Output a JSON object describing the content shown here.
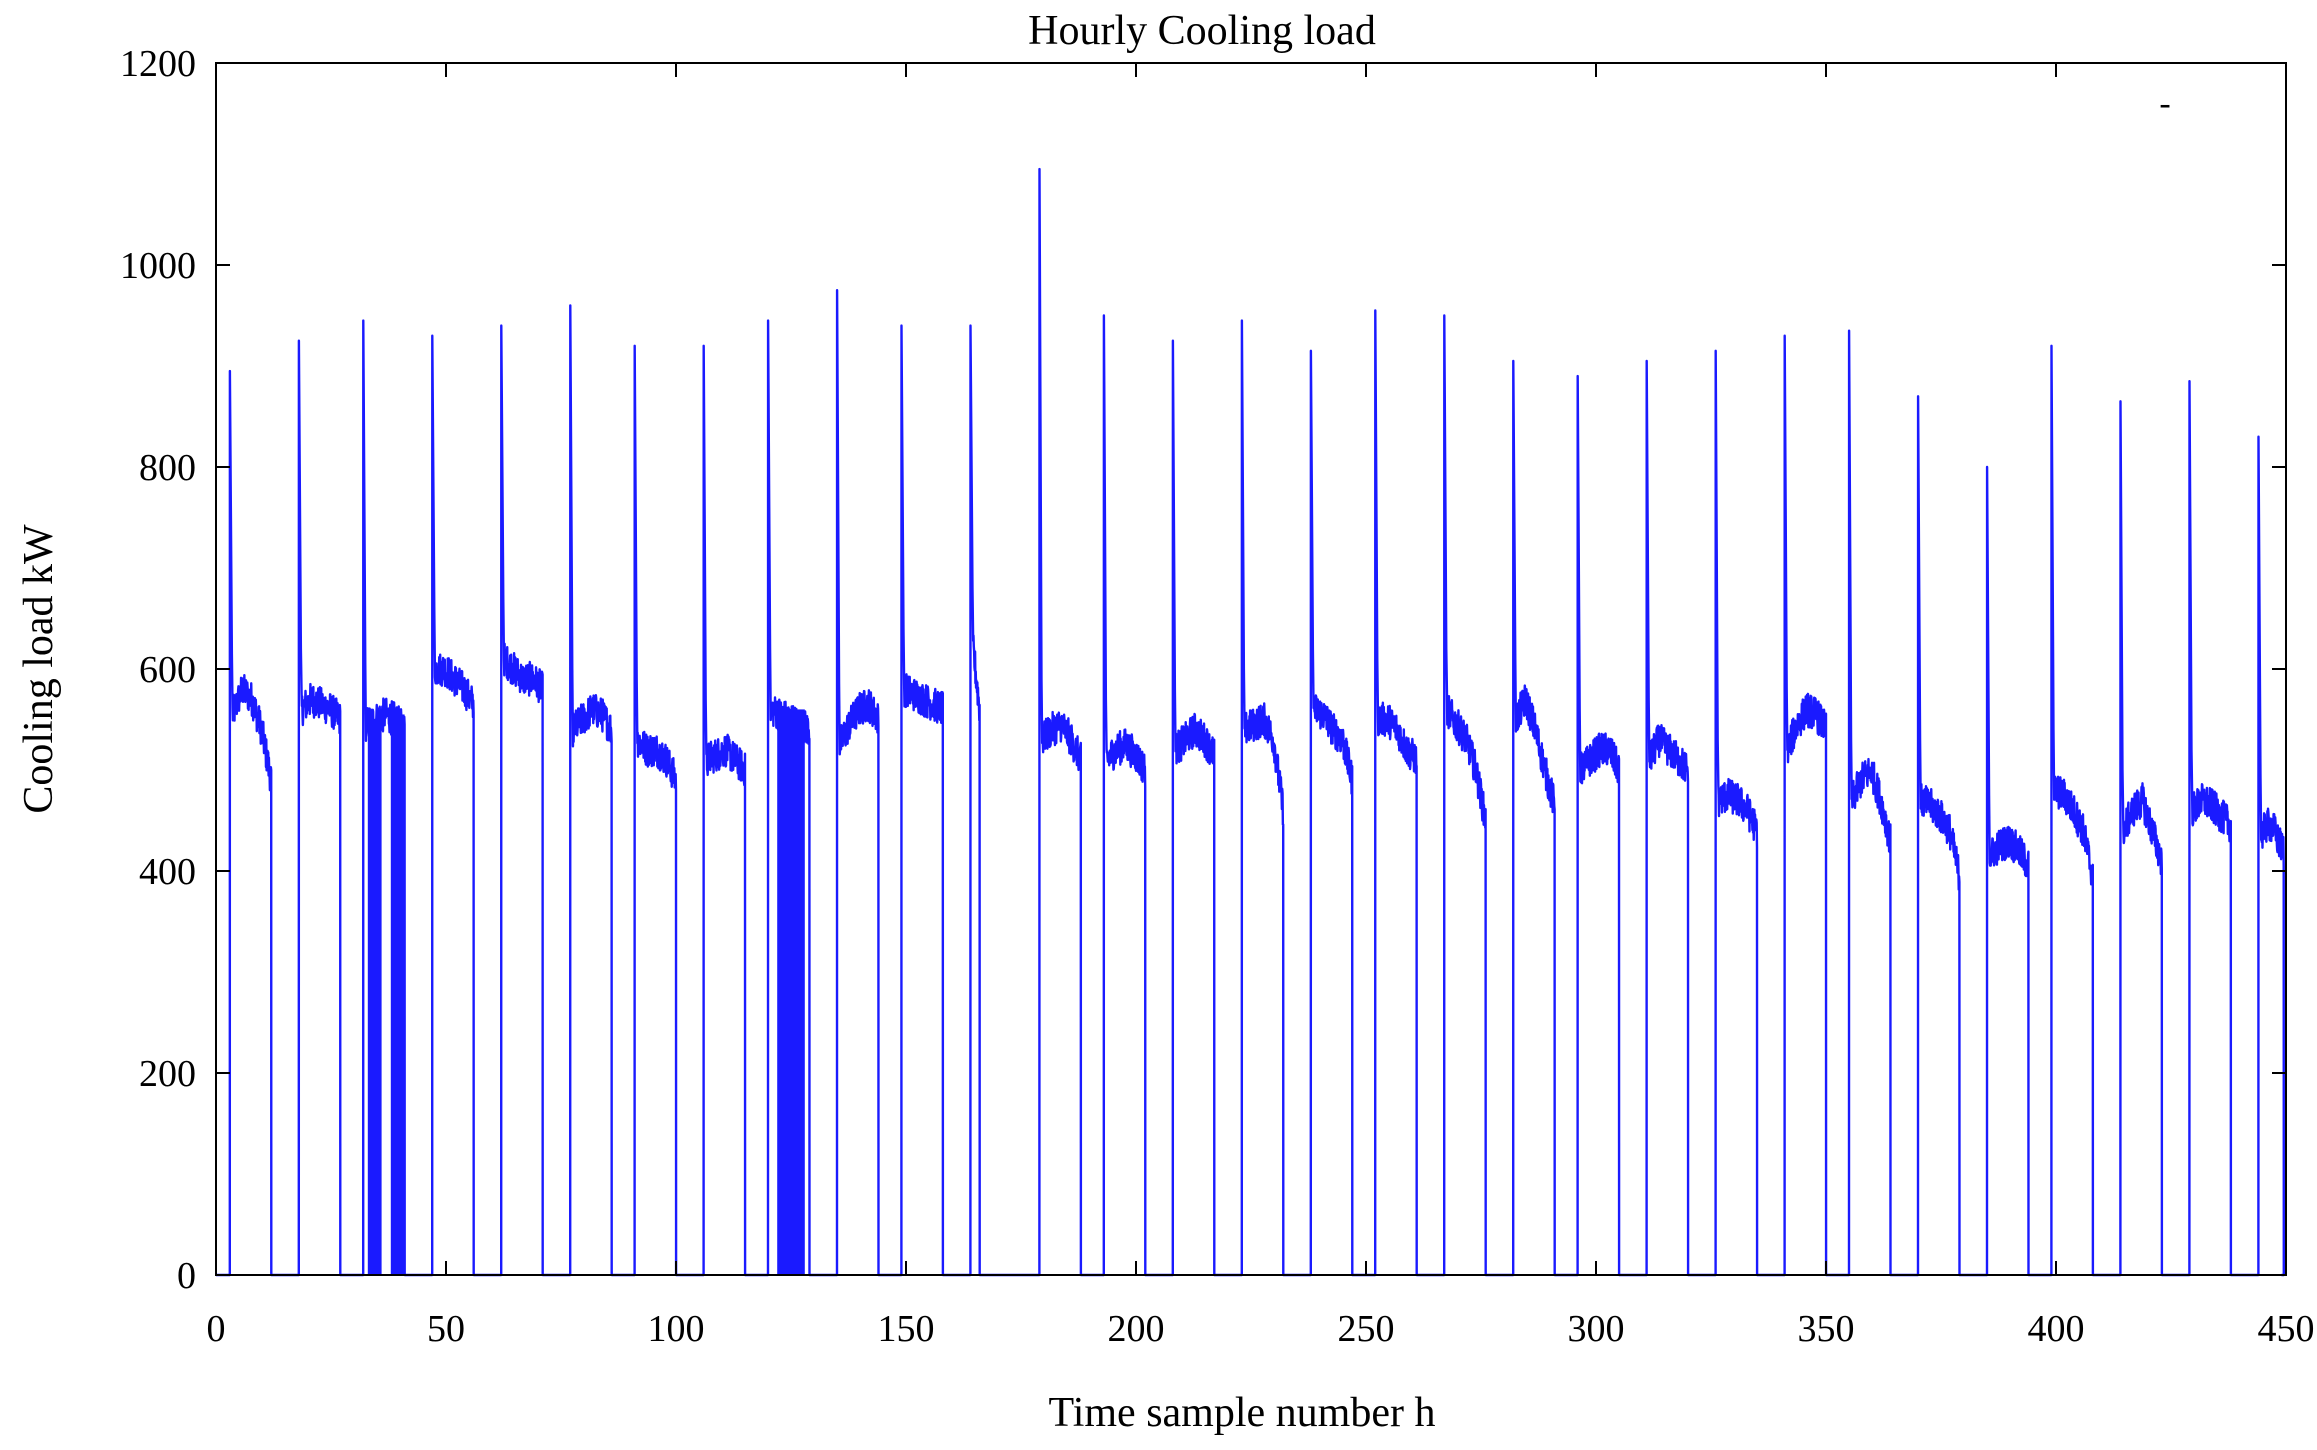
{
  "chart_data": {
    "type": "line",
    "title": "Hourly Cooling load",
    "xlabel": "Time sample number  h",
    "ylabel": "Cooling load  kW",
    "xlim": [
      0,
      450
    ],
    "ylim": [
      0,
      1200
    ],
    "xticks": [
      0,
      50,
      100,
      150,
      200,
      250,
      300,
      350,
      400,
      450
    ],
    "yticks": [
      0,
      200,
      400,
      600,
      800,
      1000,
      1200
    ],
    "grid": false,
    "line_color": "#1a1aff",
    "series": [
      {
        "segments": [
          {
            "start": 3,
            "end": 12,
            "peak": 895,
            "levels": [
              555,
              580,
              570,
              540,
              490
            ]
          },
          {
            "start": 18,
            "end": 27,
            "peak": 925,
            "levels": [
              560,
              570,
              565,
              560,
              550
            ]
          },
          {
            "start": 32,
            "end": 41,
            "peak": 945,
            "levels": [
              545,
              550,
              555,
              550,
              540
            ]
          },
          {
            "start": 47,
            "end": 56,
            "peak": 930,
            "levels": [
              600,
              600,
              590,
              580,
              565
            ]
          },
          {
            "start": 62,
            "end": 71,
            "peak": 940,
            "levels": [
              610,
              600,
              590,
              590,
              580
            ]
          },
          {
            "start": 77,
            "end": 86,
            "peak": 960,
            "levels": [
              540,
              550,
              560,
              555,
              540
            ]
          },
          {
            "start": 91,
            "end": 100,
            "peak": 920,
            "levels": [
              530,
              520,
              520,
              510,
              490
            ]
          },
          {
            "start": 106,
            "end": 115,
            "peak": 920,
            "levels": [
              510,
              515,
              520,
              510,
              500
            ]
          },
          {
            "start": 120,
            "end": 129,
            "peak": 945,
            "levels": [
              560,
              555,
              550,
              545,
              540
            ]
          },
          {
            "start": 135,
            "end": 144,
            "peak": 975,
            "levels": [
              525,
              545,
              560,
              565,
              550
            ]
          },
          {
            "start": 149,
            "end": 158,
            "peak": 940,
            "levels": [
              580,
              575,
              570,
              565,
              560
            ]
          },
          {
            "start": 164,
            "end": 166,
            "peak": 940,
            "levels": [
              620,
              560
            ]
          },
          {
            "start": 179,
            "end": 188,
            "peak": 1095,
            "levels": [
              530,
              540,
              545,
              530,
              510
            ]
          },
          {
            "start": 193,
            "end": 202,
            "peak": 950,
            "levels": [
              510,
              520,
              525,
              515,
              500
            ]
          },
          {
            "start": 208,
            "end": 217,
            "peak": 925,
            "levels": [
              520,
              530,
              540,
              530,
              515
            ]
          },
          {
            "start": 223,
            "end": 232,
            "peak": 945,
            "levels": [
              540,
              545,
              550,
              530,
              460
            ]
          },
          {
            "start": 238,
            "end": 247,
            "peak": 915,
            "levels": [
              560,
              555,
              540,
              530,
              490
            ]
          },
          {
            "start": 252,
            "end": 261,
            "peak": 955,
            "levels": [
              550,
              550,
              540,
              520,
              510
            ]
          },
          {
            "start": 267,
            "end": 276,
            "peak": 950,
            "levels": [
              560,
              545,
              530,
              500,
              450
            ]
          },
          {
            "start": 282,
            "end": 291,
            "peak": 905,
            "levels": [
              550,
              570,
              540,
              500,
              465
            ]
          },
          {
            "start": 296,
            "end": 305,
            "peak": 890,
            "levels": [
              500,
              510,
              520,
              520,
              500
            ]
          },
          {
            "start": 311,
            "end": 320,
            "peak": 905,
            "levels": [
              510,
              530,
              520,
              510,
              500
            ]
          },
          {
            "start": 326,
            "end": 335,
            "peak": 915,
            "levels": [
              470,
              475,
              470,
              460,
              440
            ]
          },
          {
            "start": 341,
            "end": 350,
            "peak": 930,
            "levels": [
              520,
              545,
              560,
              555,
              540
            ]
          },
          {
            "start": 355,
            "end": 364,
            "peak": 935,
            "levels": [
              470,
              490,
              500,
              470,
              430
            ]
          },
          {
            "start": 370,
            "end": 379,
            "peak": 870,
            "levels": [
              470,
              465,
              455,
              440,
              395
            ]
          },
          {
            "start": 385,
            "end": 394,
            "peak": 800,
            "levels": [
              415,
              425,
              430,
              420,
              405
            ]
          },
          {
            "start": 399,
            "end": 408,
            "peak": 920,
            "levels": [
              480,
              475,
              460,
              440,
              395
            ]
          },
          {
            "start": 414,
            "end": 423,
            "peak": 865,
            "levels": [
              440,
              460,
              470,
              440,
              410
            ]
          },
          {
            "start": 429,
            "end": 438,
            "peak": 885,
            "levels": [
              460,
              470,
              465,
              455,
              445
            ]
          },
          {
            "start": 444,
            "end": 453,
            "peak": 830,
            "levels": [
              435,
              445,
              445,
              430,
              420
            ]
          }
        ],
        "dense_blocks": [
          {
            "start": 33,
            "end": 36,
            "top": 545
          },
          {
            "start": 38,
            "end": 41,
            "top": 555
          },
          {
            "start": 122,
            "end": 128,
            "top": 560
          }
        ]
      }
    ],
    "stray_mark": "-"
  }
}
